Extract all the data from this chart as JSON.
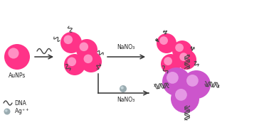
{
  "bg_color": "#ffffff",
  "pink_color": "#FF3388",
  "pink_inner": "#FFB0D8",
  "purple_color": "#CC55CC",
  "purple_inner": "#EEB0EE",
  "gray_color": "#9AABB0",
  "gray_inner": "#D0E0E5",
  "text_color": "#222222",
  "arrow_color": "#333333",
  "dna_color": "#444444",
  "fig_width": 3.78,
  "fig_height": 1.83,
  "dpi": 100,
  "labels": {
    "aunps": "AuNPs",
    "nano3": "NaNO₃",
    "dna_legend": "DNA",
    "ag_legend": "Ag⁺"
  }
}
